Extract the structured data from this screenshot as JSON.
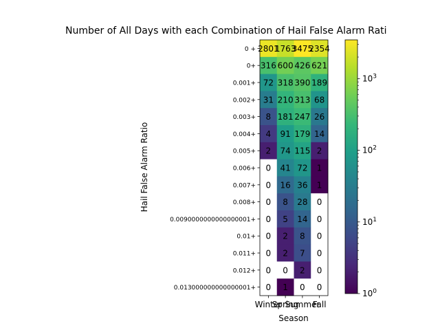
{
  "chart_data": {
    "type": "heatmap",
    "title": "Number of All Days with each Combination of Hail False Alarm Rati",
    "xlabel": "Season",
    "ylabel": "Hail False Alarm Ratio",
    "x_categories": [
      "Winter",
      "Spring",
      "Summer",
      "Fall"
    ],
    "y_categories": [
      "0 +",
      "0+",
      "0.001+",
      "0.002+",
      "0.003+",
      "0.004+",
      "0.005+",
      "0.006+",
      "0.007+",
      "0.008+",
      "0.0090000000000000001+",
      "0.01+",
      "0.011+",
      "0.012+",
      "0.013000000000000001+"
    ],
    "values": [
      [
        2801,
        1763,
        3475,
        2354
      ],
      [
        316,
        600,
        426,
        621
      ],
      [
        72,
        318,
        390,
        189
      ],
      [
        31,
        210,
        313,
        68
      ],
      [
        8,
        181,
        247,
        26
      ],
      [
        4,
        91,
        179,
        14
      ],
      [
        2,
        74,
        115,
        2
      ],
      [
        0,
        41,
        72,
        1
      ],
      [
        0,
        16,
        36,
        1
      ],
      [
        0,
        8,
        28,
        0
      ],
      [
        0,
        5,
        14,
        0
      ],
      [
        0,
        2,
        8,
        0
      ],
      [
        0,
        2,
        7,
        0
      ],
      [
        0,
        0,
        2,
        0
      ],
      [
        0,
        1,
        0,
        0
      ]
    ],
    "colormap": "viridis",
    "color_scale": "log",
    "color_range": [
      1,
      3475
    ],
    "zero_color": "#ffffff",
    "colorbar_ticks": [
      {
        "value": 1,
        "base": "10",
        "exp": "0"
      },
      {
        "value": 10,
        "base": "10",
        "exp": "1"
      },
      {
        "value": 100,
        "base": "10",
        "exp": "2"
      },
      {
        "value": 1000,
        "base": "10",
        "exp": "3"
      }
    ]
  }
}
